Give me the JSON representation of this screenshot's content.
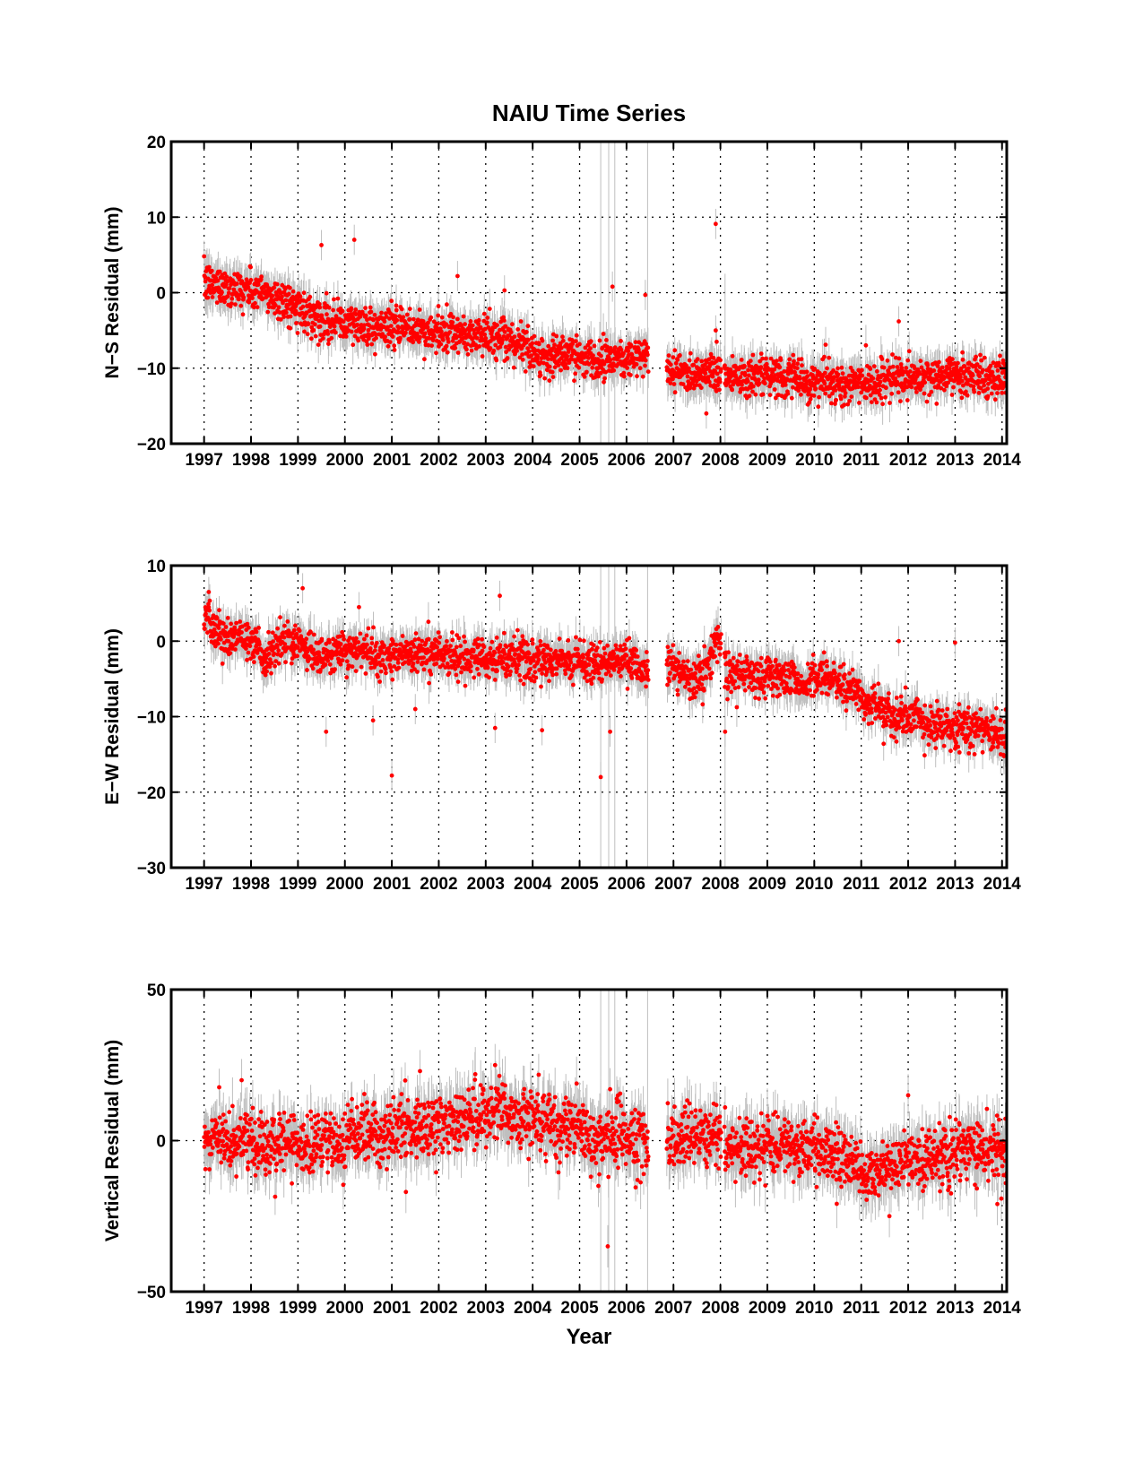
{
  "figure": {
    "title": "NAIU Time Series",
    "xlabel": "Year"
  },
  "colors": {
    "marker": "#ff0000",
    "errorbar": "#bfbfbf",
    "axes": "#000000",
    "grid": "#000000",
    "background": "#ffffff"
  },
  "chart_data": [
    {
      "type": "scatter",
      "panel": "N-S",
      "ylabel": "N−S Residual (mm)",
      "xlim": [
        1996.3,
        2014.1
      ],
      "ylim": [
        -20,
        20
      ],
      "xticks": [
        1997,
        1998,
        1999,
        2000,
        2001,
        2002,
        2003,
        2004,
        2005,
        2006,
        2007,
        2008,
        2009,
        2010,
        2011,
        2012,
        2013,
        2014
      ],
      "xtick_labels": [
        "1997",
        "1998",
        "1999",
        "2000",
        "2001",
        "2002",
        "2003",
        "2004",
        "2005",
        "2006",
        "2007",
        "2008",
        "2009",
        "2010",
        "2011",
        "2012",
        "2013",
        "2014"
      ],
      "yticks": [
        -20,
        -10,
        0,
        10,
        20
      ],
      "ytick_labels": [
        "−20",
        "−10",
        "0",
        "10",
        "20"
      ],
      "grid": true,
      "marker": "dot",
      "error_bars": true,
      "trend": [
        [
          1997.0,
          1.2
        ],
        [
          1997.4,
          1.0
        ],
        [
          1997.8,
          0.5
        ],
        [
          1998.2,
          0.0
        ],
        [
          1998.6,
          -0.8
        ],
        [
          1999.0,
          -2.0
        ],
        [
          1999.4,
          -3.2
        ],
        [
          1999.8,
          -3.8
        ],
        [
          2000.2,
          -4.2
        ],
        [
          2000.6,
          -4.4
        ],
        [
          2001.0,
          -4.6
        ],
        [
          2001.4,
          -4.9
        ],
        [
          2001.8,
          -5.2
        ],
        [
          2002.2,
          -5.5
        ],
        [
          2002.6,
          -5.8
        ],
        [
          2002.9,
          -5.5
        ],
        [
          2003.2,
          -6.2
        ],
        [
          2003.6,
          -6.8
        ],
        [
          2003.8,
          -6.5
        ],
        [
          2004.0,
          -8.0
        ],
        [
          2004.4,
          -8.5
        ],
        [
          2004.8,
          -8.3
        ],
        [
          2005.2,
          -8.5
        ],
        [
          2005.6,
          -8.7
        ],
        [
          2006.0,
          -8.5
        ],
        [
          2006.4,
          -8.6
        ],
        [
          2007.0,
          -10.3
        ],
        [
          2007.5,
          -10.6
        ],
        [
          2007.9,
          -10.2
        ],
        [
          2008.1,
          -11.0
        ],
        [
          2008.6,
          -11.0
        ],
        [
          2009.0,
          -11.3
        ],
        [
          2009.5,
          -11.2
        ],
        [
          2010.0,
          -11.8
        ],
        [
          2010.5,
          -12.2
        ],
        [
          2011.0,
          -12.0
        ],
        [
          2011.5,
          -11.7
        ],
        [
          2012.0,
          -11.5
        ],
        [
          2012.5,
          -11.3
        ],
        [
          2013.0,
          -11.1
        ],
        [
          2013.5,
          -11.0
        ],
        [
          2014.1,
          -11.3
        ]
      ],
      "gaps": [
        [
          2006.47,
          2006.85
        ],
        [
          2008.02,
          2008.08
        ]
      ],
      "outliers": [
        [
          1999.5,
          6.3
        ],
        [
          2000.2,
          7.0
        ],
        [
          2002.4,
          2.2
        ],
        [
          2003.4,
          0.3
        ],
        [
          2005.7,
          0.8
        ],
        [
          2006.4,
          -0.3
        ],
        [
          2007.9,
          9.1
        ],
        [
          2007.9,
          -5.0
        ],
        [
          2007.92,
          -6.5
        ],
        [
          2011.8,
          -3.8
        ],
        [
          2007.7,
          -16.0
        ]
      ],
      "noise": 1.3,
      "err": 2.0,
      "spikes": [
        [
          2005.45,
          -20,
          20
        ],
        [
          2005.62,
          -20,
          20
        ],
        [
          2005.75,
          -20,
          20
        ],
        [
          2006.45,
          -20,
          20
        ],
        [
          2008.1,
          -20,
          2.5
        ]
      ]
    },
    {
      "type": "scatter",
      "panel": "E-W",
      "ylabel": "E−W Residual (mm)",
      "xlim": [
        1996.3,
        2014.1
      ],
      "ylim": [
        -30,
        10
      ],
      "xticks": [
        1997,
        1998,
        1999,
        2000,
        2001,
        2002,
        2003,
        2004,
        2005,
        2006,
        2007,
        2008,
        2009,
        2010,
        2011,
        2012,
        2013,
        2014
      ],
      "xtick_labels": [
        "1997",
        "1998",
        "1999",
        "2000",
        "2001",
        "2002",
        "2003",
        "2004",
        "2005",
        "2006",
        "2007",
        "2008",
        "2009",
        "2010",
        "2011",
        "2012",
        "2013",
        "2014"
      ],
      "yticks": [
        -30,
        -20,
        -10,
        0,
        10
      ],
      "ytick_labels": [
        "−30",
        "−20",
        "−10",
        "0",
        "10"
      ],
      "grid": true,
      "marker": "dot",
      "error_bars": true,
      "trend": [
        [
          1997.0,
          3.0
        ],
        [
          1997.2,
          1.5
        ],
        [
          1997.5,
          0.5
        ],
        [
          1998.0,
          0.0
        ],
        [
          1998.3,
          -2.5
        ],
        [
          1998.6,
          -0.5
        ],
        [
          1999.0,
          0.0
        ],
        [
          1999.4,
          -2.0
        ],
        [
          1999.8,
          -1.5
        ],
        [
          2000.3,
          -1.0
        ],
        [
          2000.8,
          -2.0
        ],
        [
          2001.2,
          -1.5
        ],
        [
          2001.6,
          -1.8
        ],
        [
          2002.0,
          -1.5
        ],
        [
          2002.5,
          -2.2
        ],
        [
          2003.0,
          -2.5
        ],
        [
          2003.5,
          -2.0
        ],
        [
          2004.0,
          -2.8
        ],
        [
          2004.5,
          -2.6
        ],
        [
          2005.0,
          -2.5
        ],
        [
          2005.5,
          -3.0
        ],
        [
          2006.0,
          -2.5
        ],
        [
          2006.4,
          -4.0
        ],
        [
          2006.9,
          -3.0
        ],
        [
          2007.3,
          -4.5
        ],
        [
          2007.6,
          -5.0
        ],
        [
          2007.8,
          -2.0
        ],
        [
          2007.95,
          1.5
        ],
        [
          2008.1,
          -4.0
        ],
        [
          2008.5,
          -4.5
        ],
        [
          2009.0,
          -4.8
        ],
        [
          2009.5,
          -5.0
        ],
        [
          2009.8,
          -6.0
        ],
        [
          2010.0,
          -4.0
        ],
        [
          2010.5,
          -5.5
        ],
        [
          2010.9,
          -6.5
        ],
        [
          2011.1,
          -8.5
        ],
        [
          2011.6,
          -9.5
        ],
        [
          2012.0,
          -10.0
        ],
        [
          2012.5,
          -10.8
        ],
        [
          2013.0,
          -11.5
        ],
        [
          2013.6,
          -11.8
        ],
        [
          2014.1,
          -12.5
        ]
      ],
      "gaps": [
        [
          2006.47,
          2006.85
        ],
        [
          2008.02,
          2008.08
        ]
      ],
      "outliers": [
        [
          1997.1,
          6.5
        ],
        [
          1999.1,
          7.0
        ],
        [
          2000.3,
          4.5
        ],
        [
          2003.3,
          6.0
        ],
        [
          1999.6,
          -12.0
        ],
        [
          2000.6,
          -10.5
        ],
        [
          2001.0,
          -17.8
        ],
        [
          2001.5,
          -9.0
        ],
        [
          2003.2,
          -11.5
        ],
        [
          2004.2,
          -11.8
        ],
        [
          2005.65,
          -12.0
        ],
        [
          2005.45,
          -18.0
        ],
        [
          2011.8,
          0.0
        ],
        [
          2013.0,
          -0.2
        ],
        [
          2008.1,
          -12.0
        ]
      ],
      "noise": 1.3,
      "err": 2.0,
      "spikes": [
        [
          2005.45,
          -30,
          10
        ],
        [
          2005.62,
          -30,
          10
        ],
        [
          2005.75,
          -30,
          10
        ],
        [
          2006.45,
          -30,
          10
        ],
        [
          2008.1,
          -30,
          -2
        ]
      ]
    },
    {
      "type": "scatter",
      "panel": "Vertical",
      "ylabel": "Vertical Residual (mm)",
      "xlim": [
        1996.3,
        2014.1
      ],
      "ylim": [
        -50,
        50
      ],
      "xticks": [
        1997,
        1998,
        1999,
        2000,
        2001,
        2002,
        2003,
        2004,
        2005,
        2006,
        2007,
        2008,
        2009,
        2010,
        2011,
        2012,
        2013,
        2014
      ],
      "xtick_labels": [
        "1997",
        "1998",
        "1999",
        "2000",
        "2001",
        "2002",
        "2003",
        "2004",
        "2005",
        "2006",
        "2007",
        "2008",
        "2009",
        "2010",
        "2011",
        "2012",
        "2013",
        "2014"
      ],
      "yticks": [
        -50,
        0,
        50
      ],
      "ytick_labels": [
        "−50",
        "0",
        "50"
      ],
      "grid": true,
      "marker": "dot",
      "error_bars": true,
      "trend": [
        [
          1997.0,
          1.0
        ],
        [
          1998.0,
          0.0
        ],
        [
          1999.0,
          -1.0
        ],
        [
          2000.0,
          0.0
        ],
        [
          2000.5,
          2.0
        ],
        [
          2001.0,
          3.0
        ],
        [
          2001.5,
          4.0
        ],
        [
          2002.0,
          5.0
        ],
        [
          2002.5,
          7.0
        ],
        [
          2003.0,
          9.0
        ],
        [
          2003.3,
          11.0
        ],
        [
          2003.6,
          8.0
        ],
        [
          2004.0,
          7.0
        ],
        [
          2004.5,
          5.0
        ],
        [
          2005.0,
          5.0
        ],
        [
          2005.4,
          0.0
        ],
        [
          2005.6,
          2.0
        ],
        [
          2006.0,
          2.0
        ],
        [
          2006.4,
          -1.0
        ],
        [
          2006.9,
          0.0
        ],
        [
          2007.5,
          1.0
        ],
        [
          2007.95,
          2.0
        ],
        [
          2008.1,
          -2.0
        ],
        [
          2009.0,
          -2.0
        ],
        [
          2009.5,
          -2.5
        ],
        [
          2010.0,
          -3.0
        ],
        [
          2010.5,
          -5.0
        ],
        [
          2010.9,
          -8.0
        ],
        [
          2011.0,
          -12.0
        ],
        [
          2011.5,
          -10.0
        ],
        [
          2012.0,
          -7.0
        ],
        [
          2012.5,
          -5.0
        ],
        [
          2013.0,
          -4.0
        ],
        [
          2013.5,
          -3.5
        ],
        [
          2014.1,
          -4.0
        ]
      ],
      "gaps": [
        [
          2006.47,
          2006.85
        ],
        [
          2008.02,
          2008.08
        ]
      ],
      "outliers": [
        [
          1997.8,
          20.0
        ],
        [
          2001.6,
          23.0
        ],
        [
          2003.2,
          25.0
        ],
        [
          2005.6,
          -35.0
        ],
        [
          2005.4,
          -15.0
        ],
        [
          2005.65,
          17.0
        ],
        [
          2012.0,
          15.0
        ],
        [
          2001.3,
          -17.0
        ],
        [
          2011.6,
          -25.0
        ],
        [
          2013.9,
          -21.0
        ],
        [
          2008.1,
          11.0
        ]
      ],
      "noise": 5.0,
      "err": 7.0,
      "spikes": [
        [
          2005.45,
          -50,
          50
        ],
        [
          2005.62,
          -50,
          50
        ],
        [
          2005.75,
          -50,
          50
        ],
        [
          2006.45,
          -50,
          50
        ]
      ]
    }
  ]
}
